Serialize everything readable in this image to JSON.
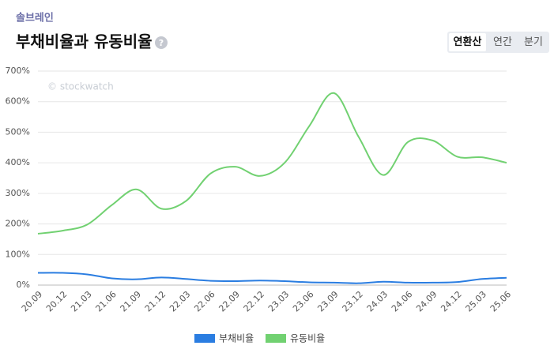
{
  "header": {
    "company": "솔브레인",
    "title": "부채비율과 유동비율",
    "help": "?"
  },
  "tabs": [
    "연환산",
    "연간",
    "분기"
  ],
  "chart_data": {
    "type": "line",
    "watermark": "© stockwatch",
    "categories": [
      "20.09",
      "20.12",
      "21.03",
      "21.06",
      "21.09",
      "21.12",
      "22.03",
      "22.06",
      "22.09",
      "22.12",
      "23.03",
      "23.06",
      "23.09",
      "23.12",
      "24.03",
      "24.06",
      "24.09",
      "24.12",
      "25.03",
      "25.06"
    ],
    "series": [
      {
        "name": "부채비율",
        "color": "#2a7de1",
        "values": [
          40,
          40,
          35,
          22,
          19,
          25,
          20,
          14,
          13,
          15,
          13,
          9,
          8,
          6,
          11,
          8,
          8,
          10,
          20,
          24
        ]
      },
      {
        "name": "유동비율",
        "color": "#71d171",
        "values": [
          168,
          178,
          198,
          262,
          313,
          250,
          275,
          365,
          387,
          357,
          400,
          520,
          628,
          485,
          360,
          468,
          473,
          420,
          418,
          400
        ]
      }
    ],
    "ylim": [
      0,
      700
    ],
    "yticks": [
      {
        "value": 0,
        "label": "0%"
      },
      {
        "value": 100,
        "label": "100%"
      },
      {
        "value": 200,
        "label": "200%"
      },
      {
        "value": 300,
        "label": "300%"
      },
      {
        "value": 400,
        "label": "400%"
      },
      {
        "value": 500,
        "label": "500%"
      },
      {
        "value": 600,
        "label": "600%"
      },
      {
        "value": 700,
        "label": "700%"
      }
    ],
    "grid": true,
    "legend": "bottom"
  }
}
